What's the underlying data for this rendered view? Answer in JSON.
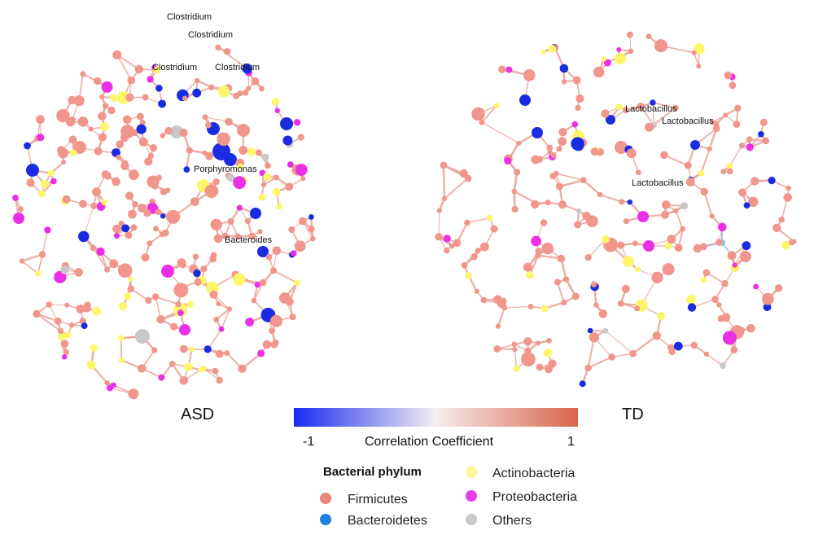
{
  "panels": {
    "asd": {
      "title": "ASD",
      "labels": [
        "Clostridium",
        "Clostridium",
        "Clostridium",
        "Clostridium",
        "Porphyromonas",
        "Bacteroides"
      ]
    },
    "td": {
      "title": "TD",
      "labels": [
        "Lactobacillus",
        "Lactobacillus",
        "Lactobacillus"
      ]
    }
  },
  "colorbar": {
    "label": "Correlation Coefficient",
    "min_label": "-1",
    "max_label": "1",
    "low_color": "#1a2cf2",
    "mid_color": "#f4efef",
    "high_color": "#d9634a"
  },
  "legend": {
    "title": "Bacterial phylum",
    "items": [
      {
        "name": "Firmicutes",
        "color": "#e8857a"
      },
      {
        "name": "Bacteroidetes",
        "color": "#1f7fe0"
      },
      {
        "name": "Actinobacteria",
        "color": "#fbf79a"
      },
      {
        "name": "Proteobacteria",
        "color": "#e83be8"
      },
      {
        "name": "Others",
        "color": "#c9c9c9"
      }
    ]
  },
  "node_colors": {
    "firmicutes": "#f0968c",
    "bacteroidetes_neg": "#1a2ce0",
    "bacteroidetes_light": "#7ec8e8",
    "actinobacteria": "#fdf66a",
    "proteobacteria": "#ea2fe6",
    "others": "#c8c8c8",
    "edge_pos": "#e9a79c",
    "edge_neg": "#9fb4e8"
  }
}
